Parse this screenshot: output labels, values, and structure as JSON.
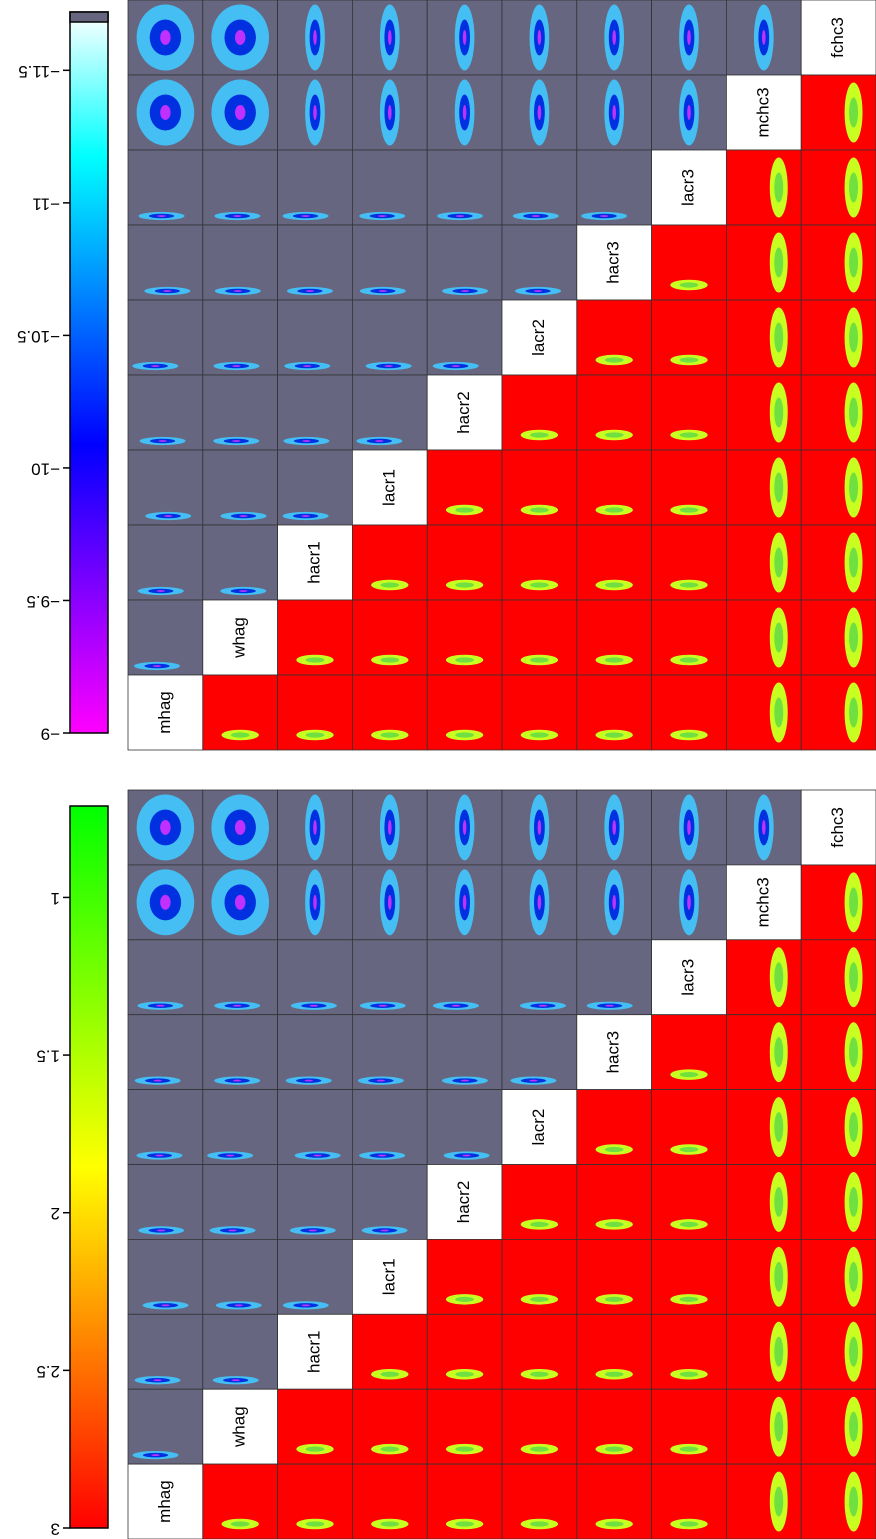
{
  "chart_data": [
    {
      "type": "pair-matrix",
      "variables": [
        "mhag",
        "whag",
        "hacr1",
        "lacr1",
        "hacr2",
        "lacr2",
        "hacr3",
        "lacr3",
        "mchc3",
        "fchc3"
      ],
      "colorbar": {
        "lim": [
          -9,
          -11.72
        ],
        "colors": [
          "#ff00ff",
          "#8000ff",
          "#0000ff",
          "#0080ff",
          "#00ffff",
          "#ffffff"
        ],
        "ticks": [
          {
            "value": -9,
            "label": "−9"
          },
          {
            "value": -9.5,
            "label": "−9.5"
          },
          {
            "value": -10,
            "label": "−10"
          },
          {
            "value": -10.5,
            "label": "−10.5"
          },
          {
            "value": -11,
            "label": "−11"
          },
          {
            "value": -11.5,
            "label": "−11.5"
          }
        ]
      }
    },
    {
      "type": "pair-matrix",
      "variables": [
        "mhag",
        "whag",
        "hacr1",
        "lacr1",
        "hacr2",
        "lacr2",
        "hacr3",
        "lacr3",
        "mchc3",
        "fchc3"
      ],
      "colorbar": {
        "lim": [
          3,
          0.71
        ],
        "colors": [
          "#ff0000",
          "#ff8000",
          "#ffff00",
          "#80ff00",
          "#00ff00"
        ],
        "ticks": [
          3,
          2.5,
          2,
          1.5,
          1
        ]
      }
    }
  ]
}
